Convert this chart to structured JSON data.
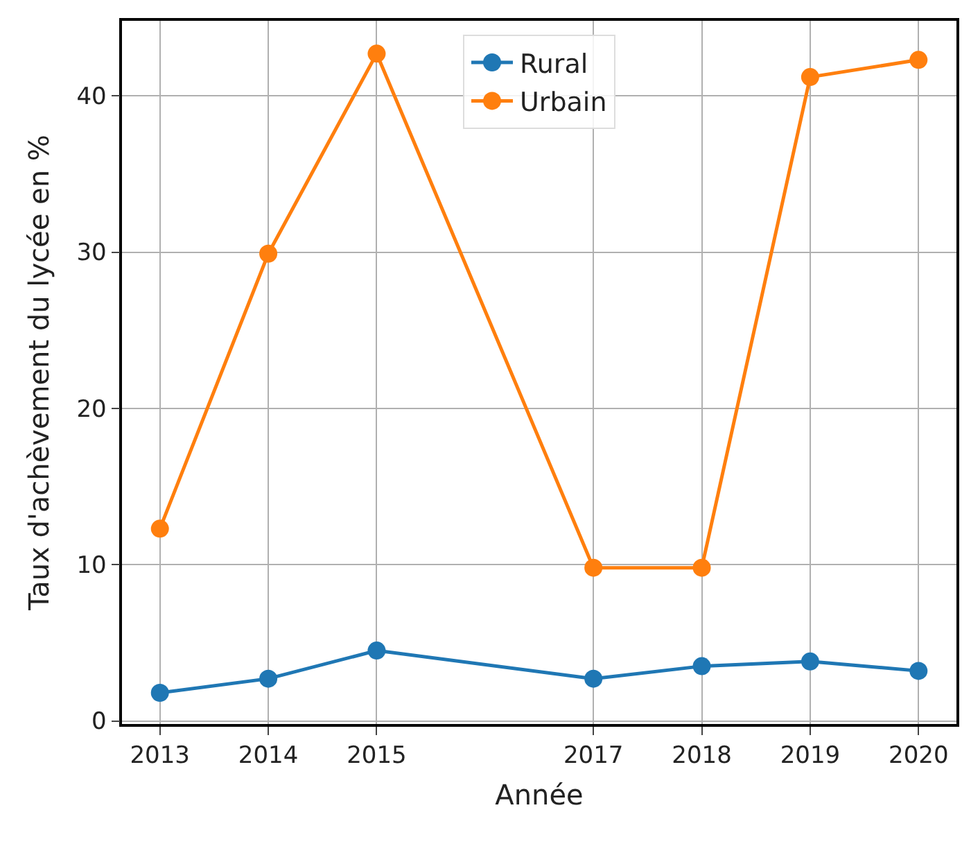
{
  "chart_data": {
    "type": "line",
    "xlabel": "Année",
    "ylabel": "Taux d'achèvement du lycée en %",
    "x": [
      2013,
      2014,
      2015,
      2017,
      2018,
      2019,
      2020
    ],
    "series": [
      {
        "name": "Rural",
        "color": "#1f77b4",
        "values": [
          1.8,
          2.7,
          4.5,
          2.7,
          3.5,
          3.8,
          3.2
        ]
      },
      {
        "name": "Urbain",
        "color": "#ff7f0e",
        "values": [
          12.3,
          29.9,
          42.7,
          9.8,
          9.8,
          41.2,
          42.3
        ]
      }
    ],
    "xlim": [
      2012.65,
      2020.35
    ],
    "xticks": [
      2013,
      2014,
      2015,
      2017,
      2018,
      2019,
      2020
    ],
    "ylim": [
      -0.2,
      44.8
    ],
    "yticks": [
      0,
      10,
      20,
      30,
      40
    ],
    "grid": true,
    "legend": "top",
    "marker": "circle",
    "line_style": "solid"
  }
}
